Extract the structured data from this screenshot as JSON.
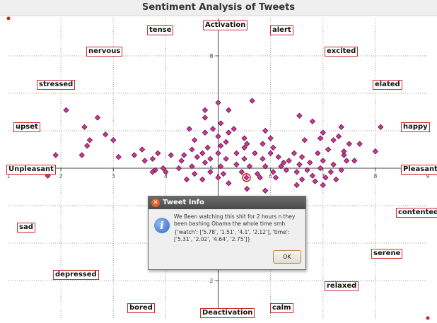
{
  "window": {
    "title": "Sentiment Analysis of Tweets"
  },
  "chart_data": {
    "type": "scatter",
    "title": "Sentiment Analysis of Tweets",
    "xlim": [
      1,
      9
    ],
    "ylim": [
      1,
      9
    ],
    "x_ticks": [
      "1",
      "2",
      "3",
      "4",
      "5",
      "6",
      "7",
      "8",
      "9"
    ],
    "y_ticks": [
      "2",
      "5",
      "8"
    ],
    "grid": true,
    "marker_color": "#d0379a",
    "highlight_point": {
      "x": 5.54,
      "y": 4.75
    },
    "points": [
      [
        5.0,
        6.75
      ],
      [
        5.2,
        6.55
      ],
      [
        5.65,
        6.8
      ],
      [
        4.75,
        6.55
      ],
      [
        4.75,
        6.35
      ],
      [
        5.05,
        6.2
      ],
      [
        4.45,
        6.05
      ],
      [
        4.9,
        6.05
      ],
      [
        5.3,
        6.05
      ],
      [
        5.9,
        6.0
      ],
      [
        5.2,
        5.95
      ],
      [
        4.75,
        5.95
      ],
      [
        5.0,
        5.85
      ],
      [
        5.5,
        5.8
      ],
      [
        6.0,
        5.8
      ],
      [
        5.15,
        5.7
      ],
      [
        5.55,
        5.65
      ],
      [
        5.85,
        5.65
      ],
      [
        4.55,
        5.75
      ],
      [
        5.05,
        5.6
      ],
      [
        4.8,
        5.55
      ],
      [
        5.5,
        5.55
      ],
      [
        4.5,
        5.5
      ],
      [
        4.7,
        5.4
      ],
      [
        5.0,
        5.4
      ],
      [
        5.35,
        5.4
      ],
      [
        5.7,
        5.4
      ],
      [
        6.0,
        5.4
      ],
      [
        4.35,
        5.35
      ],
      [
        4.6,
        5.3
      ],
      [
        4.85,
        5.25
      ],
      [
        5.15,
        5.25
      ],
      [
        5.5,
        5.25
      ],
      [
        5.85,
        5.25
      ],
      [
        6.15,
        5.3
      ],
      [
        3.85,
        5.4
      ],
      [
        4.1,
        5.35
      ],
      [
        4.3,
        5.2
      ],
      [
        4.5,
        5.05
      ],
      [
        4.75,
        5.15
      ],
      [
        5.05,
        5.05
      ],
      [
        5.35,
        5.1
      ],
      [
        5.6,
        5.05
      ],
      [
        5.9,
        5.05
      ],
      [
        6.2,
        5.05
      ],
      [
        3.75,
        5.25
      ],
      [
        3.95,
        5.0
      ],
      [
        4.25,
        5.0
      ],
      [
        4.55,
        4.85
      ],
      [
        4.85,
        4.9
      ],
      [
        5.1,
        4.85
      ],
      [
        5.45,
        4.9
      ],
      [
        5.75,
        4.85
      ],
      [
        6.05,
        4.9
      ],
      [
        3.8,
        4.95
      ],
      [
        4.0,
        4.9
      ],
      [
        4.4,
        4.7
      ],
      [
        4.7,
        4.7
      ],
      [
        5.0,
        4.75
      ],
      [
        5.2,
        4.6
      ],
      [
        5.8,
        4.75
      ],
      [
        6.1,
        4.75
      ],
      [
        5.55,
        4.45
      ],
      [
        5.9,
        4.4
      ],
      [
        2.1,
        6.55
      ],
      [
        2.45,
        6.1
      ],
      [
        2.7,
        6.35
      ],
      [
        2.85,
        5.9
      ],
      [
        2.55,
        5.75
      ],
      [
        2.5,
        5.6
      ],
      [
        3.0,
        5.75
      ],
      [
        2.4,
        5.35
      ],
      [
        3.1,
        5.3
      ],
      [
        1.9,
        5.35
      ],
      [
        1.75,
        4.8
      ],
      [
        3.6,
        5.2
      ],
      [
        3.55,
        5.5
      ],
      [
        3.4,
        5.35
      ],
      [
        3.75,
        4.9
      ],
      [
        6.55,
        6.4
      ],
      [
        6.8,
        6.25
      ],
      [
        7.0,
        5.95
      ],
      [
        7.35,
        6.1
      ],
      [
        6.95,
        5.8
      ],
      [
        6.65,
        5.75
      ],
      [
        7.2,
        5.75
      ],
      [
        7.5,
        5.65
      ],
      [
        7.7,
        5.65
      ],
      [
        8.1,
        6.1
      ],
      [
        8.0,
        5.45
      ],
      [
        6.45,
        5.4
      ],
      [
        6.6,
        5.3
      ],
      [
        6.9,
        5.4
      ],
      [
        7.1,
        5.5
      ],
      [
        7.4,
        5.35
      ],
      [
        7.6,
        5.2
      ],
      [
        6.35,
        5.2
      ],
      [
        6.55,
        5.1
      ],
      [
        6.75,
        5.15
      ],
      [
        7.0,
        5.2
      ],
      [
        7.2,
        5.1
      ],
      [
        7.45,
        5.2
      ],
      [
        6.3,
        4.95
      ],
      [
        6.5,
        4.9
      ],
      [
        6.7,
        4.95
      ],
      [
        6.95,
        5.0
      ],
      [
        7.15,
        4.9
      ],
      [
        7.35,
        4.95
      ],
      [
        7.05,
        4.75
      ],
      [
        6.8,
        4.8
      ],
      [
        6.6,
        4.7
      ],
      [
        6.85,
        4.65
      ],
      [
        7.25,
        4.7
      ],
      [
        7.0,
        4.55
      ],
      [
        6.5,
        4.55
      ],
      [
        7.4,
        5.45
      ],
      [
        6.25,
        5.15
      ],
      [
        6.05,
        5.55
      ],
      [
        7.3,
        5.85
      ]
    ]
  },
  "affect_labels": [
    {
      "text": "tense"
    },
    {
      "text": "Activation"
    },
    {
      "text": "alert"
    },
    {
      "text": "nervous"
    },
    {
      "text": "excited"
    },
    {
      "text": "stressed"
    },
    {
      "text": "elated"
    },
    {
      "text": "upset"
    },
    {
      "text": "happy"
    },
    {
      "text": "Unpleasant"
    },
    {
      "text": "Pleasant"
    },
    {
      "text": "contented"
    },
    {
      "text": "sad"
    },
    {
      "text": "serene"
    },
    {
      "text": "depressed"
    },
    {
      "text": "relaxed"
    },
    {
      "text": "bored"
    },
    {
      "text": "Deactivation"
    },
    {
      "text": "calm"
    }
  ],
  "dialog": {
    "title": "Tweet Info",
    "message": "We Been watching this shit for 2 hours n they been bashing Obama the whole time smh",
    "data": "{'watch': ['5.78', '1.51', '4.1', '2.12'], 'time': ['5.31', '2.02', '4.64', '2.75']}",
    "ok_label": "OK"
  }
}
